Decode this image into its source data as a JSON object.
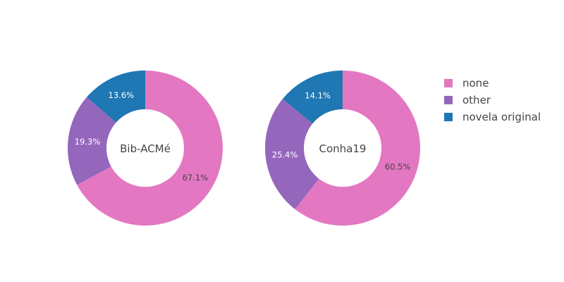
{
  "chart_data": {
    "type": "pie",
    "hole": 0.5,
    "categories": [
      "none",
      "other",
      "novela original"
    ],
    "colors": [
      "#e377c2",
      "#9467bd",
      "#1f77b4"
    ],
    "legend_position": "right",
    "charts": [
      {
        "name": "Bib-ACMé",
        "values": [
          67.1,
          19.3,
          13.6
        ],
        "labels": [
          "67.1%",
          "19.3%",
          "13.6%"
        ]
      },
      {
        "name": "Conha19",
        "values": [
          60.5,
          25.4,
          14.1
        ],
        "labels": [
          "60.5%",
          "25.4%",
          "14.1%"
        ]
      }
    ]
  }
}
